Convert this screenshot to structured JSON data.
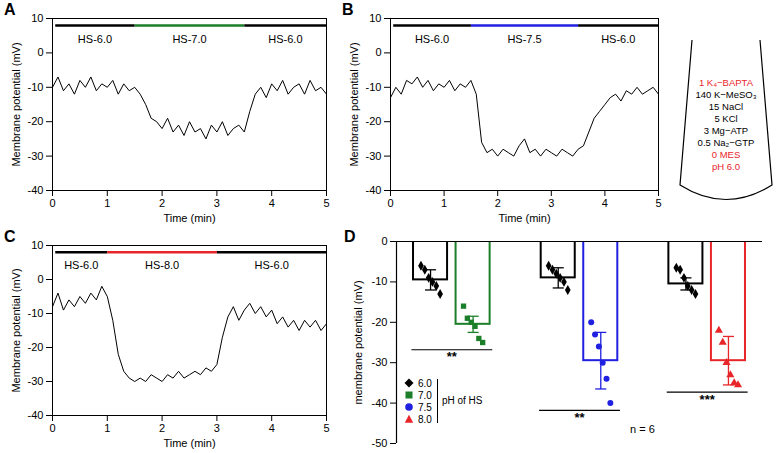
{
  "chart_data": [
    {
      "panel": "A",
      "type": "line",
      "x_label": "Time (min)",
      "y_label": "Membrane potential (mV)",
      "xlim": [
        0,
        5
      ],
      "xticks": [
        0,
        1,
        2,
        3,
        4,
        5
      ],
      "ylim": [
        -40,
        10
      ],
      "yticks": [
        -40,
        -30,
        -20,
        -10,
        0,
        10
      ],
      "color": "black",
      "x": [
        0,
        0.1,
        0.2,
        0.3,
        0.4,
        0.5,
        0.6,
        0.7,
        0.8,
        0.9,
        1,
        1.1,
        1.2,
        1.3,
        1.4,
        1.5,
        1.6,
        1.7,
        1.8,
        1.9,
        2,
        2.1,
        2.2,
        2.3,
        2.4,
        2.5,
        2.6,
        2.7,
        2.8,
        2.9,
        3,
        3.1,
        3.2,
        3.3,
        3.4,
        3.5,
        3.6,
        3.7,
        3.8,
        3.9,
        4,
        4.1,
        4.2,
        4.3,
        4.4,
        4.5,
        4.6,
        4.7,
        4.8,
        4.9,
        5
      ],
      "values": [
        -10,
        -7,
        -11,
        -9,
        -12,
        -8,
        -10,
        -7,
        -11,
        -9,
        -10,
        -8,
        -12,
        -9,
        -11,
        -10,
        -12,
        -15,
        -19,
        -20,
        -22,
        -19,
        -23,
        -21,
        -24,
        -20,
        -23,
        -22,
        -25,
        -21,
        -23,
        -20,
        -24,
        -22,
        -21,
        -23,
        -17,
        -12,
        -10,
        -13,
        -9,
        -11,
        -8,
        -12,
        -10,
        -9,
        -12,
        -8,
        -11,
        -10,
        -12
      ],
      "annotations": [
        {
          "text": "HS-6.0",
          "x": [
            0.05,
            1.5
          ],
          "color": "black"
        },
        {
          "text": "HS-7.0",
          "x": [
            1.5,
            3.5
          ],
          "color": "#1b7f2a"
        },
        {
          "text": "HS-6.0",
          "x": [
            3.5,
            5
          ],
          "color": "black"
        }
      ]
    },
    {
      "panel": "B",
      "type": "line",
      "x_label": "Time (min)",
      "y_label": "Membrane potential (mV)",
      "xlim": [
        0,
        5
      ],
      "xticks": [
        0,
        1,
        2,
        3,
        4,
        5
      ],
      "ylim": [
        -40,
        10
      ],
      "yticks": [
        -40,
        -30,
        -20,
        -10,
        0,
        10
      ],
      "color": "black",
      "x": [
        0,
        0.1,
        0.2,
        0.3,
        0.4,
        0.5,
        0.6,
        0.7,
        0.8,
        0.9,
        1,
        1.1,
        1.2,
        1.3,
        1.4,
        1.5,
        1.6,
        1.7,
        1.8,
        1.9,
        2,
        2.1,
        2.2,
        2.3,
        2.4,
        2.5,
        2.6,
        2.7,
        2.8,
        2.9,
        3,
        3.1,
        3.2,
        3.3,
        3.4,
        3.5,
        3.6,
        3.7,
        3.8,
        3.9,
        4,
        4.1,
        4.2,
        4.3,
        4.4,
        4.5,
        4.6,
        4.7,
        4.8,
        4.9,
        5
      ],
      "values": [
        -13,
        -10,
        -12,
        -8,
        -9,
        -7,
        -10,
        -8,
        -11,
        -9,
        -10,
        -8,
        -11,
        -9,
        -10,
        -8,
        -12,
        -26,
        -29,
        -28,
        -30,
        -28,
        -29,
        -30,
        -27,
        -25,
        -29,
        -28,
        -30,
        -28,
        -29,
        -30,
        -28,
        -29,
        -30,
        -28,
        -27,
        -23,
        -19,
        -17,
        -15,
        -13,
        -12,
        -14,
        -11,
        -12,
        -10,
        -12,
        -11,
        -10,
        -12
      ],
      "annotations": [
        {
          "text": "HS-6.0",
          "x": [
            0.05,
            1.5
          ],
          "color": "black"
        },
        {
          "text": "HS-7.5",
          "x": [
            1.5,
            3.5
          ],
          "color": "#2020e0"
        },
        {
          "text": "HS-6.0",
          "x": [
            3.5,
            5
          ],
          "color": "black"
        }
      ]
    },
    {
      "panel": "C",
      "type": "line",
      "x_label": "Time (min)",
      "y_label": "Membrane potential (mV)",
      "xlim": [
        0,
        5
      ],
      "xticks": [
        0,
        1,
        2,
        3,
        4,
        5
      ],
      "ylim": [
        -40,
        10
      ],
      "yticks": [
        -40,
        -30,
        -20,
        -10,
        0,
        10
      ],
      "color": "black",
      "x": [
        0,
        0.1,
        0.2,
        0.3,
        0.4,
        0.5,
        0.6,
        0.7,
        0.8,
        0.9,
        1,
        1.1,
        1.2,
        1.3,
        1.4,
        1.5,
        1.6,
        1.7,
        1.8,
        1.9,
        2,
        2.1,
        2.2,
        2.3,
        2.4,
        2.5,
        2.6,
        2.7,
        2.8,
        2.9,
        3,
        3.1,
        3.2,
        3.3,
        3.4,
        3.5,
        3.6,
        3.7,
        3.8,
        3.9,
        4,
        4.1,
        4.2,
        4.3,
        4.4,
        4.5,
        4.6,
        4.7,
        4.8,
        4.9,
        5
      ],
      "values": [
        -8,
        -4,
        -9,
        -6,
        -8,
        -5,
        -7,
        -4,
        -6,
        -2,
        -5,
        -12,
        -22,
        -27,
        -29,
        -30,
        -29,
        -30,
        -28,
        -29,
        -30,
        -28,
        -29,
        -27,
        -29,
        -28,
        -27,
        -28,
        -26,
        -27,
        -25,
        -17,
        -11,
        -8,
        -12,
        -9,
        -7,
        -10,
        -8,
        -11,
        -9,
        -13,
        -11,
        -14,
        -12,
        -15,
        -12,
        -14,
        -12,
        -15,
        -13
      ],
      "annotations": [
        {
          "text": "HS-6.0",
          "x": [
            0.05,
            1
          ],
          "color": "black"
        },
        {
          "text": "HS-8.0",
          "x": [
            1,
            3
          ],
          "color": "#e8262a"
        },
        {
          "text": "HS-6.0",
          "x": [
            3,
            5
          ],
          "color": "black"
        }
      ]
    },
    {
      "panel": "D",
      "type": "bar",
      "y_label": "membrane potential (mV)",
      "ylim": [
        -50,
        0
      ],
      "yticks": [
        0,
        -10,
        -20,
        -30,
        -40,
        -50
      ],
      "tick_labels": "y",
      "categories": [
        null,
        null,
        null
      ],
      "series": [
        {
          "name": "6.0",
          "color": "black",
          "marker": "diamond",
          "values": [
            -9.5,
            -9,
            -10.5
          ],
          "errors": [
            2.5,
            2.5,
            1.5
          ],
          "points": [
            [
              -6,
              -7,
              -9,
              -10,
              -11,
              -13
            ],
            [
              -6,
              -7,
              -8,
              -9,
              -10,
              -12
            ],
            [
              -6.5,
              -7,
              -9,
              -11,
              -12,
              -13
            ]
          ]
        },
        {
          "name": "7.0",
          "color": "#1b7f2a",
          "marker": "square",
          "values": [
            -20.5,
            null,
            null
          ],
          "errors": [
            2,
            null,
            null
          ],
          "points": [
            [
              -16,
              -19,
              -20,
              -21,
              -24,
              -25
            ],
            null,
            null
          ]
        },
        {
          "name": "7.5",
          "color": "#2020e0",
          "marker": "circle",
          "values": [
            null,
            -29.5,
            null
          ],
          "errors": [
            null,
            7,
            null
          ],
          "points": [
            null,
            [
              -20,
              -23,
              -26,
              -30,
              -34,
              -40
            ],
            null
          ]
        },
        {
          "name": "8.0",
          "color": "#e8262a",
          "marker": "triangle",
          "values": [
            null,
            null,
            -29.5
          ],
          "errors": [
            null,
            null,
            6
          ],
          "points": [
            null,
            null,
            [
              -22,
              -25,
              -30,
              -33,
              -35,
              -35.5
            ]
          ]
        }
      ],
      "significance": [
        "**",
        "**",
        "***"
      ],
      "legend": "lower left",
      "legend_title": "pH of HS",
      "annotation": "n = 6"
    }
  ],
  "pipette": {
    "lines": [
      {
        "text": "1 K₄−BAPTA",
        "color": "#e8262a"
      },
      {
        "text": "140 K−MeSO₃",
        "color": "black"
      },
      {
        "text": "15 NaCl",
        "color": "black"
      },
      {
        "text": "5 KCl",
        "color": "black"
      },
      {
        "text": "3 Mg−ATP",
        "color": "black"
      },
      {
        "text": "0.5 Na₂−GTP",
        "color": "black"
      },
      {
        "text": "0 MES",
        "color": "#e8262a"
      },
      {
        "text": "pH 6.0",
        "color": "#e8262a"
      }
    ]
  }
}
